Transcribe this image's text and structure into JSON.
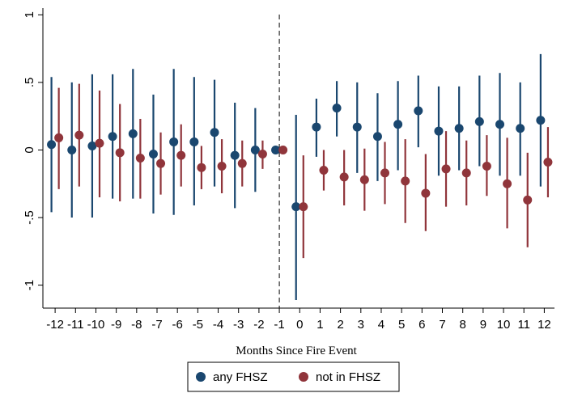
{
  "chart_data": {
    "type": "scatter",
    "title": "",
    "xlabel": "Months Since Fire Event",
    "ylabel": "",
    "x_ticks": [
      "-12",
      "-11",
      "-10",
      "-9",
      "-8",
      "-7",
      "-6",
      "-5",
      "-4",
      "-3",
      "-2",
      "-1",
      "0",
      "1",
      "2",
      "3",
      "4",
      "5",
      "6",
      "7",
      "8",
      "9",
      "10",
      "11",
      "12"
    ],
    "y_ticks": [
      "-1",
      "-.5",
      "0",
      ".5",
      "1"
    ],
    "y_tick_values": [
      -1,
      -0.5,
      0,
      0.5,
      1
    ],
    "ylim": [
      -1.17,
      1.05
    ],
    "xlim": [
      -12.6,
      12.5
    ],
    "reference_line_x": -1,
    "grid": false,
    "legend_position": "bottom",
    "series": [
      {
        "name": "any FHSZ",
        "color": "#1a476f",
        "offset": -0.18,
        "points": [
          {
            "x": -12,
            "y": 0.04,
            "lo": -0.46,
            "hi": 0.54
          },
          {
            "x": -11,
            "y": 0.0,
            "lo": -0.5,
            "hi": 0.5
          },
          {
            "x": -10,
            "y": 0.03,
            "lo": -0.5,
            "hi": 0.56
          },
          {
            "x": -9,
            "y": 0.1,
            "lo": -0.36,
            "hi": 0.56
          },
          {
            "x": -8,
            "y": 0.12,
            "lo": -0.36,
            "hi": 0.6
          },
          {
            "x": -7,
            "y": -0.03,
            "lo": -0.47,
            "hi": 0.41
          },
          {
            "x": -6,
            "y": 0.06,
            "lo": -0.48,
            "hi": 0.6
          },
          {
            "x": -5,
            "y": 0.06,
            "lo": -0.41,
            "hi": 0.54
          },
          {
            "x": -4,
            "y": 0.13,
            "lo": -0.27,
            "hi": 0.52
          },
          {
            "x": -3,
            "y": -0.04,
            "lo": -0.43,
            "hi": 0.35
          },
          {
            "x": -2,
            "y": 0.0,
            "lo": -0.31,
            "hi": 0.31
          },
          {
            "x": -1,
            "y": 0.0,
            "lo": 0.0,
            "hi": 0.0
          },
          {
            "x": 0,
            "y": -0.42,
            "lo": -1.11,
            "hi": 0.26
          },
          {
            "x": 1,
            "y": 0.17,
            "lo": -0.05,
            "hi": 0.38
          },
          {
            "x": 2,
            "y": 0.31,
            "lo": 0.1,
            "hi": 0.51
          },
          {
            "x": 3,
            "y": 0.17,
            "lo": -0.17,
            "hi": 0.5
          },
          {
            "x": 4,
            "y": 0.1,
            "lo": -0.23,
            "hi": 0.42
          },
          {
            "x": 5,
            "y": 0.19,
            "lo": -0.15,
            "hi": 0.51
          },
          {
            "x": 6,
            "y": 0.29,
            "lo": 0.02,
            "hi": 0.55
          },
          {
            "x": 7,
            "y": 0.14,
            "lo": -0.19,
            "hi": 0.47
          },
          {
            "x": 8,
            "y": 0.16,
            "lo": -0.15,
            "hi": 0.47
          },
          {
            "x": 9,
            "y": 0.21,
            "lo": -0.12,
            "hi": 0.55
          },
          {
            "x": 10,
            "y": 0.19,
            "lo": -0.19,
            "hi": 0.57
          },
          {
            "x": 11,
            "y": 0.16,
            "lo": -0.19,
            "hi": 0.5
          },
          {
            "x": 12,
            "y": 0.22,
            "lo": -0.27,
            "hi": 0.71
          }
        ]
      },
      {
        "name": "not in FHSZ",
        "color": "#90353b",
        "offset": 0.18,
        "points": [
          {
            "x": -12,
            "y": 0.09,
            "lo": -0.29,
            "hi": 0.46
          },
          {
            "x": -11,
            "y": 0.11,
            "lo": -0.27,
            "hi": 0.49
          },
          {
            "x": -10,
            "y": 0.05,
            "lo": -0.35,
            "hi": 0.44
          },
          {
            "x": -9,
            "y": -0.02,
            "lo": -0.38,
            "hi": 0.34
          },
          {
            "x": -8,
            "y": -0.06,
            "lo": -0.36,
            "hi": 0.23
          },
          {
            "x": -7,
            "y": -0.1,
            "lo": -0.33,
            "hi": 0.13
          },
          {
            "x": -6,
            "y": -0.04,
            "lo": -0.27,
            "hi": 0.19
          },
          {
            "x": -5,
            "y": -0.13,
            "lo": -0.29,
            "hi": 0.03
          },
          {
            "x": -4,
            "y": -0.12,
            "lo": -0.32,
            "hi": 0.08
          },
          {
            "x": -3,
            "y": -0.1,
            "lo": -0.27,
            "hi": 0.07
          },
          {
            "x": -2,
            "y": -0.03,
            "lo": -0.14,
            "hi": 0.07
          },
          {
            "x": -1,
            "y": 0.0,
            "lo": 0.0,
            "hi": 0.0
          },
          {
            "x": 0,
            "y": -0.42,
            "lo": -0.8,
            "hi": -0.04
          },
          {
            "x": 1,
            "y": -0.15,
            "lo": -0.3,
            "hi": 0.0
          },
          {
            "x": 2,
            "y": -0.2,
            "lo": -0.41,
            "hi": 0.0
          },
          {
            "x": 3,
            "y": -0.22,
            "lo": -0.45,
            "hi": 0.01
          },
          {
            "x": 4,
            "y": -0.17,
            "lo": -0.4,
            "hi": 0.06
          },
          {
            "x": 5,
            "y": -0.23,
            "lo": -0.54,
            "hi": 0.08
          },
          {
            "x": 6,
            "y": -0.32,
            "lo": -0.6,
            "hi": -0.03
          },
          {
            "x": 7,
            "y": -0.14,
            "lo": -0.42,
            "hi": 0.14
          },
          {
            "x": 8,
            "y": -0.17,
            "lo": -0.41,
            "hi": 0.07
          },
          {
            "x": 9,
            "y": -0.12,
            "lo": -0.34,
            "hi": 0.11
          },
          {
            "x": 10,
            "y": -0.25,
            "lo": -0.58,
            "hi": 0.09
          },
          {
            "x": 11,
            "y": -0.37,
            "lo": -0.72,
            "hi": -0.02
          },
          {
            "x": 12,
            "y": -0.09,
            "lo": -0.35,
            "hi": 0.17
          }
        ]
      }
    ]
  }
}
